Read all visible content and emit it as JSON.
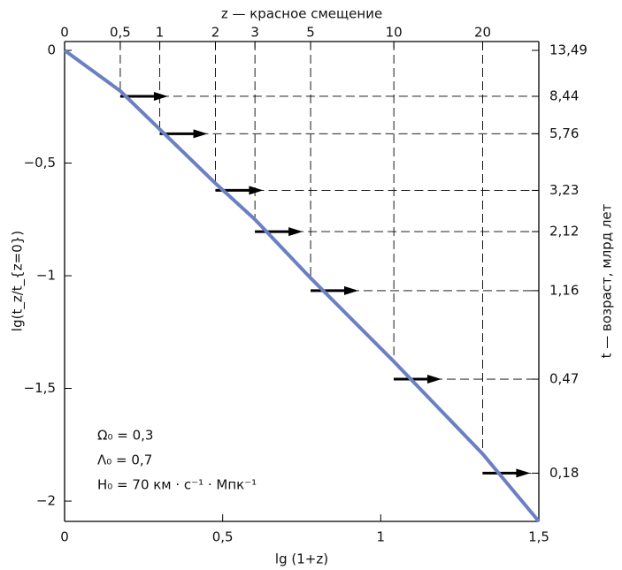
{
  "chart_data": {
    "type": "line",
    "x_label": "lg (1+z)",
    "y_label": "lg(t_z/t_{z=0})",
    "x2_label": "z — красное смещение",
    "y2_label": "t — возраст, млрд лет",
    "annotations": [
      "Ω₀ = 0,3",
      "Λ₀ = 0,7",
      "H₀ = 70 км · с⁻¹ · Мпк⁻¹"
    ],
    "series": [
      {
        "color": "#6b7fc4",
        "x": [
          0,
          0.176,
          0.301,
          0.477,
          0.602,
          0.778,
          1.041,
          1.322,
          1.5
        ],
        "values": [
          0,
          -0.18,
          -0.35,
          -0.59,
          -0.75,
          -1.01,
          -1.38,
          -1.79,
          -2.09
        ]
      }
    ],
    "xlim": [
      0,
      1.5
    ],
    "xticks": [
      0,
      {
        "value": 0.5,
        "label": "0,5"
      },
      1,
      {
        "value": 1.5,
        "label": "1,5"
      }
    ],
    "ylim": [
      -2.09,
      0
    ],
    "yticks": [
      0,
      {
        "value": -0.5,
        "label": "−0,5"
      },
      {
        "value": -1,
        "label": "−1"
      },
      {
        "value": -1.5,
        "label": "−1,5"
      },
      {
        "value": -2,
        "label": "−2"
      }
    ],
    "x2scale": "log1p",
    "x2lim": [
      0,
      30.62
    ],
    "x2ticks": [
      0,
      {
        "value": 0.5,
        "label": "0,5"
      },
      1,
      2,
      3,
      5,
      10,
      20
    ],
    "y2scale": "log",
    "y2lim": [
      0.11,
      13.49
    ],
    "y2ticks": [
      {
        "value": 13.49,
        "label": "13,49"
      },
      {
        "value": 8.44,
        "label": "8,44"
      },
      {
        "value": 5.76,
        "label": "5,76"
      },
      {
        "value": 3.23,
        "label": "3,23"
      },
      {
        "value": 2.12,
        "label": "2,12"
      },
      {
        "value": 1.16,
        "label": "1,16"
      },
      {
        "value": 0.47,
        "label": "0,47"
      },
      {
        "value": 0.18,
        "label": "0,18"
      }
    ]
  }
}
